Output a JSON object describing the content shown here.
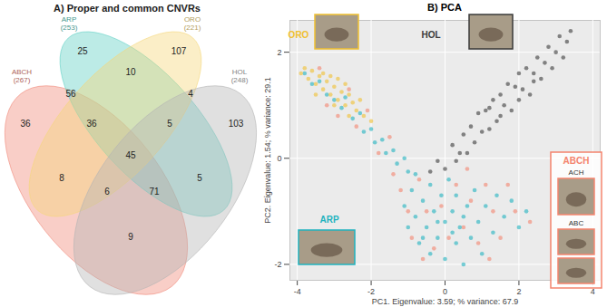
{
  "chart_data": [
    {
      "type": "venn",
      "title": "A) Proper and common CNVRs",
      "sets": [
        {
          "name": "ABCH",
          "count_label": "(267)",
          "color": "#f08a7a"
        },
        {
          "name": "ARP",
          "count_label": "(253)",
          "color": "#5fd0c4"
        },
        {
          "name": "ORO",
          "count_label": "(221)",
          "color": "#f5d77a"
        },
        {
          "name": "HOL",
          "count_label": "(248)",
          "color": "#b4b4b4"
        }
      ],
      "regions": [
        {
          "sets": [
            "ABCH"
          ],
          "value": 36
        },
        {
          "sets": [
            "ARP"
          ],
          "value": 25
        },
        {
          "sets": [
            "ORO"
          ],
          "value": 107
        },
        {
          "sets": [
            "HOL"
          ],
          "value": 103
        },
        {
          "sets": [
            "ABCH",
            "ARP"
          ],
          "value": 56
        },
        {
          "sets": [
            "ARP",
            "ORO"
          ],
          "value": 10
        },
        {
          "sets": [
            "ORO",
            "HOL"
          ],
          "value": 4
        },
        {
          "sets": [
            "ABCH",
            "ARP",
            "ORO"
          ],
          "value": 36
        },
        {
          "sets": [
            "ARP",
            "ORO",
            "HOL"
          ],
          "value": 5
        },
        {
          "sets": [
            "ABCH",
            "ARP",
            "ORO",
            "HOL"
          ],
          "value": 45
        },
        {
          "sets": [
            "ABCH",
            "ORO"
          ],
          "value": 8
        },
        {
          "sets": [
            "ARP",
            "HOL"
          ],
          "value": 5
        },
        {
          "sets": [
            "ABCH",
            "ORO",
            "HOL"
          ],
          "value": 6
        },
        {
          "sets": [
            "ABCH",
            "ARP",
            "HOL"
          ],
          "value": 71
        },
        {
          "sets": [
            "ABCH",
            "HOL"
          ],
          "value": 9
        }
      ]
    },
    {
      "type": "scatter",
      "title": "B) PCA",
      "x_label": "PC1. Eigenvalue: 3.59; % variance: 67.9",
      "y_label": "PC2. Eigenvalue: 1.54; % variance: 29.1",
      "xlim": [
        -4.2,
        4.2
      ],
      "ylim": [
        -2.3,
        2.6
      ],
      "xticks": [
        -4,
        -2,
        0,
        2,
        4
      ],
      "yticks": [
        -2,
        0,
        2
      ],
      "grid": true,
      "marker": "circle",
      "series": [
        {
          "name": "ABCH",
          "color": "#f4846e",
          "subgroups": [
            "ACH",
            "ABC"
          ],
          "x": [
            -3.4,
            -3.2,
            -2.9,
            -2.6,
            -2.4,
            -2.1,
            -1.8,
            -1.5,
            -1.4,
            -1.2,
            -1.0,
            -0.9,
            -0.7,
            -0.5,
            -0.3,
            -0.1,
            0.1,
            0.3,
            0.5,
            0.7,
            0.9,
            1.1,
            1.3,
            1.5,
            1.7,
            1.9,
            2.3,
            0.6,
            -0.6,
            1.2
          ],
          "y": [
            1.7,
            1.0,
            0.8,
            1.3,
            0.6,
            0.9,
            0.1,
            0.4,
            -0.3,
            -0.6,
            -1.0,
            -1.5,
            -0.4,
            -1.0,
            -1.7,
            -0.9,
            -1.5,
            -0.5,
            -1.3,
            -0.8,
            -1.6,
            -0.5,
            -1.0,
            -1.5,
            -0.5,
            -1.0,
            -1.2,
            -0.2,
            -1.9,
            -1.9
          ]
        },
        {
          "name": "ARP",
          "color": "#1fb3bf",
          "x": [
            -1.1,
            -1.0,
            -0.9,
            -0.8,
            -0.7,
            -0.6,
            -0.5,
            -0.4,
            -0.4,
            -0.3,
            -0.2,
            -0.1,
            0.0,
            0.0,
            0.1,
            0.2,
            0.3,
            0.3,
            0.4,
            0.5,
            0.6,
            0.7,
            0.8,
            0.9,
            1.0,
            1.1,
            1.3,
            1.4,
            1.6,
            1.8,
            2.0,
            2.2,
            -0.6,
            0.5,
            -0.2,
            0.2,
            -3.8,
            -3.6,
            -3.4,
            -3.2,
            -3.0,
            -2.8,
            -2.7,
            -2.5,
            -2.3,
            -2.2,
            -2.0,
            -1.9,
            -1.7,
            -1.6,
            -1.4,
            -1.3,
            -1.1,
            -1.0,
            -0.8
          ],
          "y": [
            -0.9,
            -1.3,
            -0.6,
            -1.1,
            -1.6,
            -0.8,
            -1.3,
            -0.5,
            -1.8,
            -1.0,
            -1.5,
            -0.7,
            -1.2,
            -1.9,
            -0.4,
            -1.0,
            -1.6,
            -0.7,
            -1.3,
            -2.0,
            -0.9,
            -1.5,
            -0.6,
            -1.2,
            -1.8,
            -0.9,
            -1.4,
            -0.7,
            -1.1,
            -0.8,
            -1.3,
            -1.0,
            -1.5,
            -1.1,
            -1.2,
            -1.4,
            1.6,
            1.4,
            1.45,
            1.2,
            1.1,
            0.95,
            1.15,
            0.75,
            0.85,
            0.5,
            0.55,
            0.3,
            0.35,
            0.1,
            0.15,
            -0.1,
            0.0,
            -0.25,
            -0.3
          ]
        },
        {
          "name": "ORO",
          "color": "#f0c030",
          "x": [
            -3.9,
            -3.7,
            -3.6,
            -3.5,
            -3.4,
            -3.3,
            -3.3,
            -3.2,
            -3.1,
            -3.1,
            -3.0,
            -2.9,
            -2.9,
            -2.8,
            -2.7,
            -2.7,
            -2.6,
            -2.5,
            -2.4,
            -2.3,
            -2.2,
            -2.0,
            -3.5,
            -3.8,
            -2.6,
            -3.0
          ],
          "y": [
            1.6,
            1.5,
            1.65,
            1.4,
            1.55,
            1.3,
            1.6,
            1.45,
            1.2,
            1.55,
            1.35,
            1.5,
            1.1,
            1.25,
            1.4,
            1.0,
            1.2,
            1.05,
            0.9,
            1.1,
            0.8,
            0.7,
            1.2,
            1.7,
            0.8,
            1.0
          ]
        },
        {
          "name": "HOL",
          "color": "#3a3a3a",
          "x": [
            -0.4,
            -0.2,
            0.0,
            0.2,
            0.3,
            0.5,
            0.6,
            0.7,
            0.8,
            0.9,
            1.0,
            1.1,
            1.2,
            1.3,
            1.4,
            1.5,
            1.5,
            1.6,
            1.7,
            1.8,
            1.9,
            2.0,
            2.0,
            2.1,
            2.2,
            2.3,
            2.4,
            2.5,
            2.6,
            2.7,
            2.8,
            2.9,
            3.0,
            3.1,
            3.2,
            3.3,
            3.4,
            2.4,
            1.2,
            0.4
          ],
          "y": [
            -0.25,
            -0.05,
            -0.2,
            0.25,
            -0.05,
            0.45,
            0.1,
            0.6,
            0.3,
            0.85,
            0.5,
            0.9,
            0.55,
            1.1,
            0.7,
            1.2,
            0.8,
            1.0,
            1.4,
            0.9,
            1.35,
            1.1,
            1.6,
            1.3,
            1.7,
            1.2,
            1.6,
            1.9,
            1.5,
            1.8,
            2.1,
            1.7,
            2.0,
            2.3,
            1.9,
            2.2,
            2.4,
            1.45,
            0.95,
            0.1
          ]
        }
      ]
    }
  ]
}
